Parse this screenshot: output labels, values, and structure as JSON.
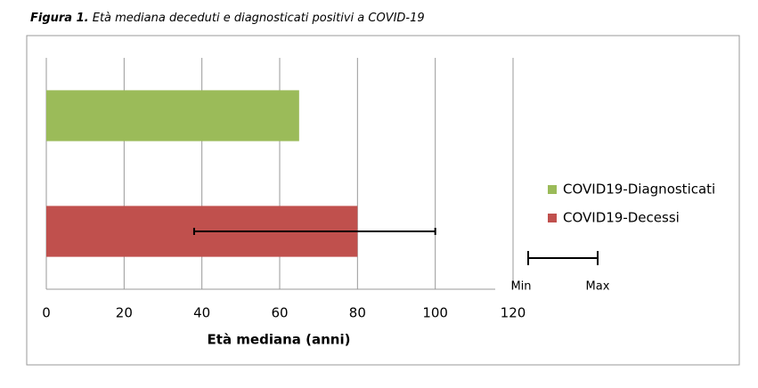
{
  "chart_data": {
    "type": "hbar",
    "title_label": "Figura 1.",
    "title": "Età mediana deceduti e diagnosticati positivi a COVID-19",
    "xlabel": "Età mediana (anni)",
    "series": [
      {
        "name": "COVID19-Diagnosticati",
        "color": "#9bbb59",
        "values": [
          65
        ]
      },
      {
        "name": "COVID19-Decessi",
        "color": "#c0504d",
        "values": [
          80
        ],
        "min": [
          38
        ],
        "max": [
          100
        ]
      }
    ],
    "range_legend": [
      "Min",
      "Max"
    ],
    "xlim": [
      0,
      120
    ],
    "xticks": [
      0,
      20,
      40,
      60,
      80,
      100,
      120
    ],
    "grid": true
  }
}
